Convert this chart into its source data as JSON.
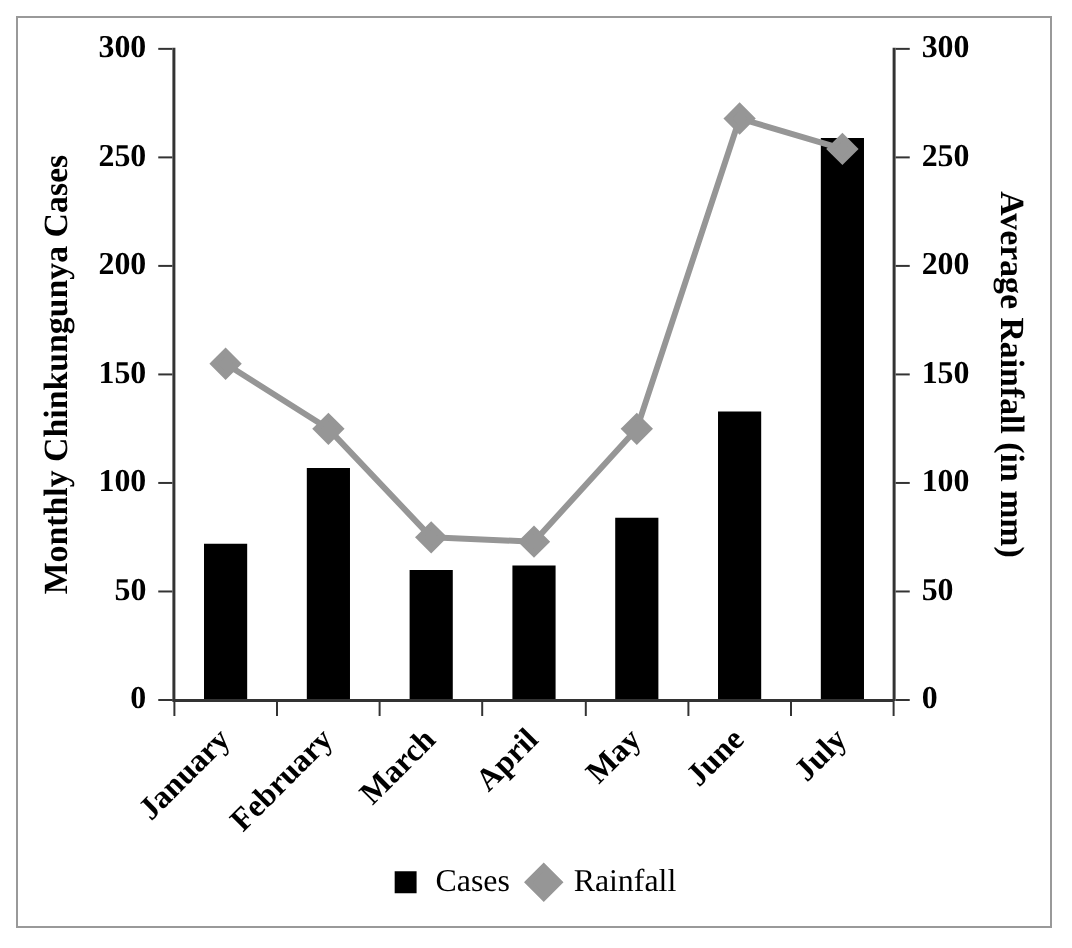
{
  "chart_data": {
    "type": "bar",
    "ylabel": "Monthly Chinkungunya Cases",
    "y2label": "Average Rainfall (in mm)",
    "categories": [
      "January",
      "February",
      "March",
      "April",
      "May",
      "June",
      "July"
    ],
    "series": [
      {
        "name": "Cases",
        "color": "#000000",
        "values": [
          72,
          107,
          60,
          62,
          84,
          133,
          259
        ]
      },
      {
        "name": "Rainfall",
        "type": "line",
        "axis": "y2",
        "color": "#969696",
        "marker": "diamond",
        "values": [
          155,
          125,
          75,
          73,
          125,
          268,
          254
        ]
      }
    ],
    "ylim": [
      0,
      300
    ],
    "yticks": [
      0,
      50,
      100,
      150,
      200,
      250,
      300
    ],
    "y2lim": [
      0,
      300
    ],
    "y2ticks": [
      0,
      50,
      100,
      150,
      200,
      250,
      300
    ],
    "grid": false,
    "legend": "bottom"
  }
}
